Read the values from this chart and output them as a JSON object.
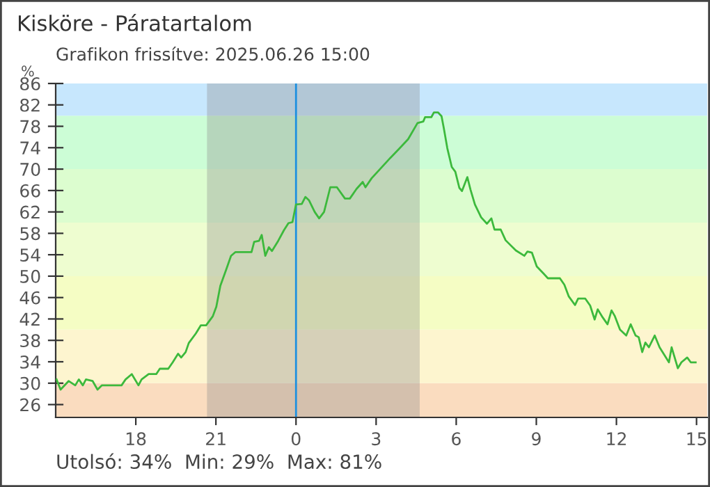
{
  "chart_data": {
    "type": "line",
    "title": "Kisköre - Páratartalom",
    "subtitle": "Grafikon frissítve: 2025.06.26 15:00",
    "ylabel": "%",
    "annotations": [
      "Utolsó: 34%  Min: 29%  Max: 81%"
    ],
    "xlim": [
      "2025-06-25T15:00",
      "2025-06-26T15:24"
    ],
    "xticks": [
      {
        "value": "2025-06-25T18:00",
        "label": "18"
      },
      {
        "value": "2025-06-25T21:00",
        "label": "21"
      },
      {
        "value": "2025-06-26T00:00",
        "label": "0"
      },
      {
        "value": "2025-06-26T03:00",
        "label": "3"
      },
      {
        "value": "2025-06-26T06:00",
        "label": "6"
      },
      {
        "value": "2025-06-26T09:00",
        "label": "9"
      },
      {
        "value": "2025-06-26T12:00",
        "label": "12"
      },
      {
        "value": "2025-06-26T15:00",
        "label": "15"
      }
    ],
    "ylim": [
      23.6,
      86
    ],
    "yticks": [
      26,
      30,
      34,
      38,
      42,
      46,
      50,
      54,
      58,
      62,
      66,
      70,
      74,
      78,
      82,
      86
    ],
    "bands": [
      {
        "axis": "y",
        "from": 23.6,
        "to": 30,
        "color": "#fadcbf"
      },
      {
        "axis": "y",
        "from": 30,
        "to": 40,
        "color": "#fdf5cf"
      },
      {
        "axis": "y",
        "from": 40,
        "to": 50,
        "color": "#f5fdc4"
      },
      {
        "axis": "y",
        "from": 50,
        "to": 60,
        "color": "#eefdd0"
      },
      {
        "axis": "y",
        "from": 60,
        "to": 70,
        "color": "#dcfdcf"
      },
      {
        "axis": "y",
        "from": 70,
        "to": 80,
        "color": "#ccfdd6"
      },
      {
        "axis": "y",
        "from": 80,
        "to": 86,
        "color": "#c7e7fd"
      },
      {
        "axis": "x",
        "from": "2025-06-25T20:40",
        "to": "2025-06-26T04:38",
        "color": "#8c8c8c"
      }
    ],
    "ref_lines": [
      {
        "axis": "x",
        "value": "2025-06-26T00:00",
        "color": "#1e90e0"
      }
    ],
    "series": [
      {
        "color": "#3cb93c",
        "x": [
          "2025-06-25T15:02",
          "2025-06-25T15:11",
          "2025-06-25T15:29",
          "2025-06-25T15:44",
          "2025-06-25T15:52",
          "2025-06-25T16:01",
          "2025-06-25T16:08",
          "2025-06-25T16:23",
          "2025-06-25T16:34",
          "2025-06-25T16:44",
          "2025-06-25T17:28",
          "2025-06-25T17:37",
          "2025-06-25T17:51",
          "2025-06-25T18:06",
          "2025-06-25T18:13",
          "2025-06-25T18:29",
          "2025-06-25T18:46",
          "2025-06-25T18:54",
          "2025-06-25T19:13",
          "2025-06-25T19:23",
          "2025-06-25T19:35",
          "2025-06-25T19:42",
          "2025-06-25T19:52",
          "2025-06-25T19:59",
          "2025-06-25T20:15",
          "2025-06-25T20:26",
          "2025-06-25T20:38",
          "2025-06-25T20:53",
          "2025-06-25T21:01",
          "2025-06-25T21:10",
          "2025-06-25T21:23",
          "2025-06-25T21:34",
          "2025-06-25T21:44",
          "2025-06-25T22:20",
          "2025-06-25T22:26",
          "2025-06-25T22:37",
          "2025-06-25T22:43",
          "2025-06-25T22:51",
          "2025-06-25T22:59",
          "2025-06-25T23:06",
          "2025-06-25T23:20",
          "2025-06-25T23:33",
          "2025-06-25T23:43",
          "2025-06-25T23:52",
          "2025-06-26T00:00",
          "2025-06-26T00:13",
          "2025-06-26T00:21",
          "2025-06-26T00:29",
          "2025-06-26T00:42",
          "2025-06-26T00:52",
          "2025-06-26T01:03",
          "2025-06-26T01:17",
          "2025-06-26T01:32",
          "2025-06-26T01:50",
          "2025-06-26T02:01",
          "2025-06-26T02:16",
          "2025-06-26T02:30",
          "2025-06-26T02:36",
          "2025-06-26T02:50",
          "2025-06-26T03:32",
          "2025-06-26T03:53",
          "2025-06-26T04:12",
          "2025-06-26T04:33",
          "2025-06-26T04:46",
          "2025-06-26T04:50",
          "2025-06-26T05:04",
          "2025-06-26T05:10",
          "2025-06-26T05:19",
          "2025-06-26T05:27",
          "2025-06-26T05:32",
          "2025-06-26T05:40",
          "2025-06-26T05:50",
          "2025-06-26T05:58",
          "2025-06-26T06:07",
          "2025-06-26T06:13",
          "2025-06-26T06:25",
          "2025-06-26T06:32",
          "2025-06-26T06:42",
          "2025-06-26T06:56",
          "2025-06-26T07:09",
          "2025-06-26T07:19",
          "2025-06-26T07:26",
          "2025-06-26T07:40",
          "2025-06-26T07:51",
          "2025-06-26T08:14",
          "2025-06-26T08:33",
          "2025-06-26T08:40",
          "2025-06-26T08:50",
          "2025-06-26T09:01",
          "2025-06-26T09:16",
          "2025-06-26T09:26",
          "2025-06-26T09:53",
          "2025-06-26T10:03",
          "2025-06-26T10:13",
          "2025-06-26T10:27",
          "2025-06-26T10:34",
          "2025-06-26T10:50",
          "2025-06-26T11:01",
          "2025-06-26T11:11",
          "2025-06-26T11:18",
          "2025-06-26T11:29",
          "2025-06-26T11:40",
          "2025-06-26T11:49",
          "2025-06-26T11:56",
          "2025-06-26T12:08",
          "2025-06-26T12:22",
          "2025-06-26T12:32",
          "2025-06-26T12:43",
          "2025-06-26T12:50",
          "2025-06-26T12:58",
          "2025-06-26T13:05",
          "2025-06-26T13:13",
          "2025-06-26T13:26",
          "2025-06-26T13:37",
          "2025-06-26T13:58",
          "2025-06-26T14:04",
          "2025-06-26T14:18",
          "2025-06-26T14:26",
          "2025-06-26T14:39",
          "2025-06-26T14:47",
          "2025-06-26T14:58"
        ],
        "values": [
          30.7,
          28.8,
          30.4,
          29.6,
          30.7,
          29.6,
          30.7,
          30.4,
          28.8,
          29.6,
          29.6,
          30.7,
          31.7,
          29.6,
          30.7,
          31.7,
          31.7,
          32.7,
          32.7,
          33.9,
          35.5,
          34.8,
          35.8,
          37.5,
          39.3,
          40.8,
          40.8,
          42.5,
          44.3,
          48.2,
          51.2,
          53.8,
          54.5,
          54.5,
          56.4,
          56.6,
          57.7,
          53.8,
          55.4,
          54.7,
          56.6,
          58.6,
          59.9,
          60.1,
          63.4,
          63.5,
          64.8,
          64.2,
          62.0,
          60.8,
          62.0,
          66.6,
          66.6,
          64.5,
          64.5,
          66.3,
          67.6,
          66.6,
          68.3,
          72.1,
          73.9,
          75.6,
          78.6,
          78.9,
          79.7,
          79.7,
          80.6,
          80.6,
          79.9,
          77.7,
          73.9,
          70.4,
          69.5,
          66.5,
          65.9,
          68.5,
          66.2,
          63.4,
          61.0,
          59.8,
          60.8,
          58.7,
          58.7,
          56.7,
          54.8,
          53.8,
          54.6,
          54.4,
          51.8,
          50.5,
          49.6,
          49.6,
          48.4,
          46.2,
          44.6,
          45.8,
          45.8,
          44.5,
          41.9,
          43.8,
          42.3,
          41.0,
          43.6,
          42.6,
          40.0,
          38.9,
          41.0,
          38.9,
          38.6,
          35.8,
          37.6,
          36.7,
          38.9,
          36.7,
          33.9,
          36.7,
          32.8,
          33.9,
          34.8,
          33.9,
          33.9
        ]
      }
    ]
  }
}
